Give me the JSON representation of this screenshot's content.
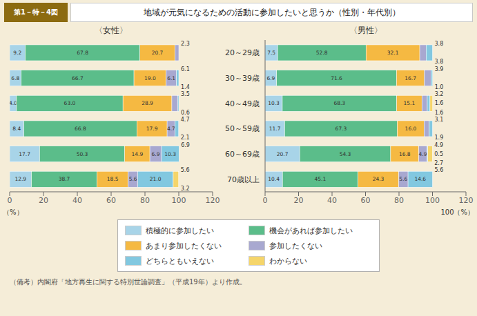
{
  "title": "地域が元気になるための活動に参加したいと思うか（性別・年代別）",
  "subtitle": "第1－特－4図",
  "annotations": [
    "（備考）内閣府「地方再生に関する特別世論調査」（平成19年）より作成。"
  ],
  "chart_data": [
    {
      "type": "bar",
      "orientation": "horizontal",
      "stacked": true,
      "title": "〈女性〉",
      "xlabel": "（%）",
      "categories": [
        "20～29歳",
        "30～39歳",
        "40～49歳",
        "50～59歳",
        "60～69歳",
        "70歳以上"
      ],
      "series": [
        {
          "name": "積極的に参加したい",
          "color": "#A8D4E8",
          "values": [
            9.2,
            6.8,
            4.0,
            8.4,
            17.7,
            12.9
          ]
        },
        {
          "name": "機会があれば参加したい",
          "color": "#5BBD8A",
          "values": [
            67.8,
            66.7,
            63.0,
            66.8,
            50.3,
            38.7
          ]
        },
        {
          "name": "あまり参加したくない",
          "color": "#F5B942",
          "values": [
            20.7,
            19.0,
            28.9,
            17.9,
            14.9,
            18.5
          ]
        },
        {
          "name": "参加したくない",
          "color": "#A8A8D0",
          "values": [
            2.3,
            6.1,
            3.5,
            4.7,
            6.9,
            5.6
          ]
        },
        {
          "name": "どちらともいえない",
          "color": "#82C8E0",
          "values": [
            0.0,
            1.4,
            0.6,
            2.1,
            10.3,
            21.0
          ]
        },
        {
          "name": "わからない",
          "color": "#F5D56A",
          "values": [
            0.0,
            0.0,
            0.0,
            0.0,
            0.0,
            3.2
          ]
        }
      ],
      "xlim": [
        0,
        120
      ],
      "xticks": [
        0,
        20,
        40,
        60,
        80,
        100,
        120
      ],
      "grid": false,
      "data_labels": true,
      "tick_labels": "x",
      "annotations": [
        {
          "category": "20～29歳",
          "value": 2.3
        },
        {
          "category": "30～39歳",
          "value": 6.1
        },
        {
          "category": "30～39歳",
          "value": 1.4
        },
        {
          "category": "40～49歳",
          "value": 3.5
        },
        {
          "category": "40～49歳",
          "value": 0.6
        },
        {
          "category": "50～59歳",
          "value": 4.7
        },
        {
          "category": "50～59歳",
          "value": 2.1
        },
        {
          "category": "60～69歳",
          "value": 6.9
        },
        {
          "category": "70歳以上",
          "value": 5.6
        },
        {
          "category": "70歳以上",
          "value": 3.2
        }
      ]
    },
    {
      "type": "bar",
      "orientation": "horizontal",
      "stacked": true,
      "title": "〈男性〉",
      "xlabel": "100（%）",
      "categories": [
        "20～29歳",
        "30～39歳",
        "40～49歳",
        "50～59歳",
        "60～69歳",
        "70歳以上"
      ],
      "series": [
        {
          "name": "積極的に参加したい",
          "color": "#A8D4E8",
          "values": [
            7.5,
            6.9,
            10.3,
            11.7,
            20.7,
            10.4
          ]
        },
        {
          "name": "機会があれば参加したい",
          "color": "#5BBD8A",
          "values": [
            52.8,
            71.6,
            68.3,
            67.3,
            54.3,
            45.1
          ]
        },
        {
          "name": "あまり参加したくない",
          "color": "#F5B942",
          "values": [
            32.1,
            16.7,
            15.1,
            16.0,
            16.8,
            24.3
          ]
        },
        {
          "name": "参加したくない",
          "color": "#A8A8D0",
          "values": [
            3.8,
            3.9,
            3.2,
            3.1,
            4.9,
            5.6
          ]
        },
        {
          "name": "どちらともいえない",
          "color": "#82C8E0",
          "values": [
            3.8,
            1.0,
            1.6,
            1.9,
            0.5,
            14.6
          ]
        },
        {
          "name": "わからない",
          "color": "#F5D56A",
          "values": [
            0.0,
            0.0,
            1.6,
            0.0,
            2.7,
            0.0
          ]
        }
      ],
      "xlim": [
        0,
        120
      ],
      "xticks": [
        0,
        20,
        40,
        60,
        80,
        100,
        120
      ],
      "grid": false,
      "data_labels": true,
      "annotations": [
        {
          "category": "20～29歳",
          "value": 3.8
        },
        {
          "category": "20～29歳",
          "value": 3.8
        },
        {
          "category": "30～39歳",
          "value": 3.9
        },
        {
          "category": "30～39歳",
          "value": 1.0
        },
        {
          "category": "40～49歳",
          "value": 3.2
        },
        {
          "category": "40～49歳",
          "value": 1.6
        },
        {
          "category": "40～49歳",
          "value": 1.6
        },
        {
          "category": "50～59歳",
          "value": 3.1
        },
        {
          "category": "50～59歳",
          "value": 1.9
        },
        {
          "category": "60～69歳",
          "value": 4.9
        },
        {
          "category": "60～69歳",
          "value": 0.5
        },
        {
          "category": "60～69歳",
          "value": 2.7
        },
        {
          "category": "70歳以上",
          "value": 5.6
        }
      ]
    }
  ]
}
